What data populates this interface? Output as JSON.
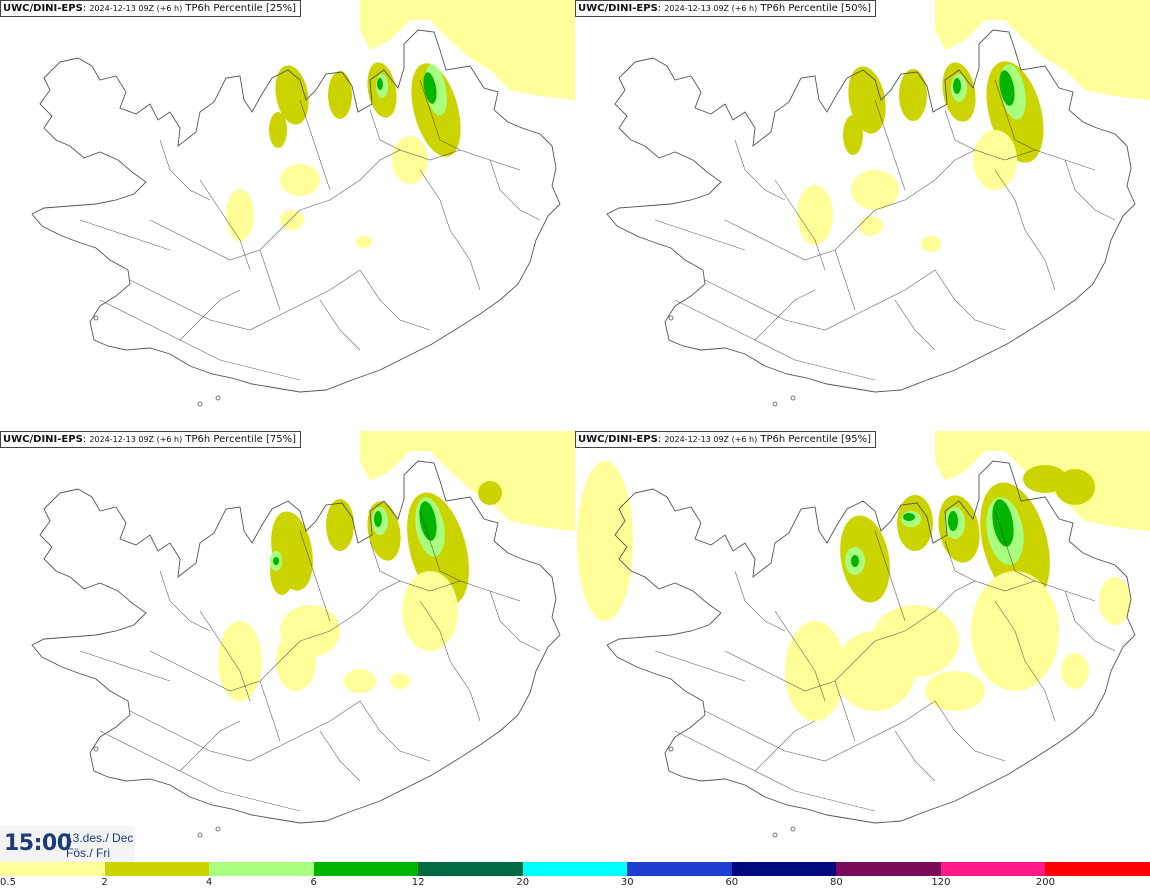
{
  "panels": [
    {
      "model": "UWC/DINI-EPS",
      "info": "2024-12-13 09Z (+6 h)",
      "variable": "TP6h Percentile [25%]",
      "percentile": 25
    },
    {
      "model": "UWC/DINI-EPS",
      "info": "2024-12-13 09Z (+6 h)",
      "variable": "TP6h Percentile [50%]",
      "percentile": 50
    },
    {
      "model": "UWC/DINI-EPS",
      "info": "2024-12-13 09Z (+6 h)",
      "variable": "TP6h Percentile [75%]",
      "percentile": 75
    },
    {
      "model": "UWC/DINI-EPS",
      "info": "2024-12-13 09Z (+6 h)",
      "variable": "TP6h Percentile [95%]",
      "percentile": 95
    }
  ],
  "time": {
    "clock": "15:00",
    "date": "13.des./ Dec",
    "day": "Fös./ Fri"
  },
  "legend": {
    "thresholds": [
      "0.5",
      "2",
      "4",
      "6",
      "12",
      "20",
      "30",
      "60",
      "80",
      "120",
      "200"
    ],
    "colors": [
      "#ffff99",
      "#ccd400",
      "#a8ff80",
      "#00b400",
      "#006a40",
      "#00ffff",
      "#1e3ecf",
      "#000a80",
      "#7a0a5a",
      "#ff1a8c",
      "#ff0000"
    ]
  },
  "colors": {
    "sea": "#ffff99",
    "level1": "#ccd400",
    "level2": "#a8ff80",
    "level3": "#00b400",
    "coast": "#555555",
    "roads": "#333333"
  }
}
